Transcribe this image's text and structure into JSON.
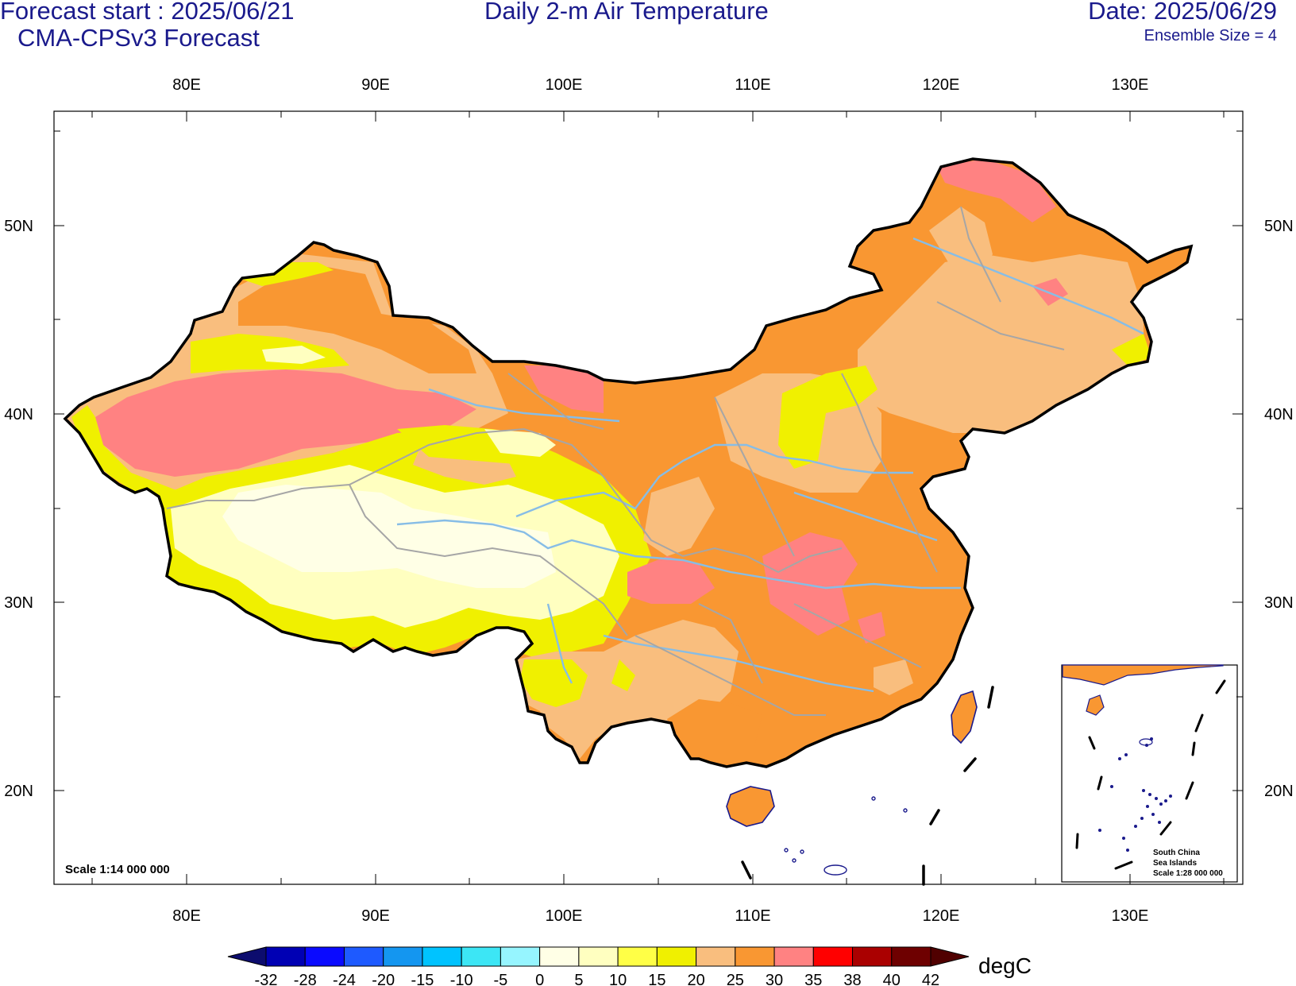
{
  "header": {
    "forecast_start": "Forecast start : 2025/06/21",
    "model": "CMA-CPSv3 Forecast",
    "title": "Daily 2-m Air Temperature",
    "date": "Date: 2025/06/29",
    "ensemble": "Ensemble Size = 4"
  },
  "map": {
    "lon_ticks": [
      "80E",
      "90E",
      "100E",
      "110E",
      "120E",
      "130E"
    ],
    "lat_ticks": [
      "50N",
      "40N",
      "30N",
      "20N"
    ],
    "scale_text": "Scale 1:14 000 000",
    "inset": {
      "title_line1": "South China",
      "title_line2": "Sea Islands",
      "scale": "Scale 1:28 000 000"
    },
    "colors": {
      "boundary": "#000000",
      "rivers": "#87bde6",
      "provinces": "#a6a6a6",
      "coast": "#1a1a8c"
    }
  },
  "colorbar": {
    "unit": "degC",
    "labels": [
      "-32",
      "-28",
      "-24",
      "-20",
      "-15",
      "-10",
      "-5",
      "0",
      "5",
      "10",
      "15",
      "20",
      "25",
      "30",
      "35",
      "38",
      "40",
      "42"
    ],
    "colors": [
      "#0c0c6e",
      "#0000b4",
      "#0a0aff",
      "#1e5aff",
      "#1496f0",
      "#00c3ff",
      "#3ce6f5",
      "#96f5ff",
      "#ffffe6",
      "#ffffc0",
      "#ffff46",
      "#f0f000",
      "#f9be7e",
      "#f99732",
      "#ff8282",
      "#ff0000",
      "#aa0000",
      "#6e0000",
      "#500000"
    ]
  }
}
